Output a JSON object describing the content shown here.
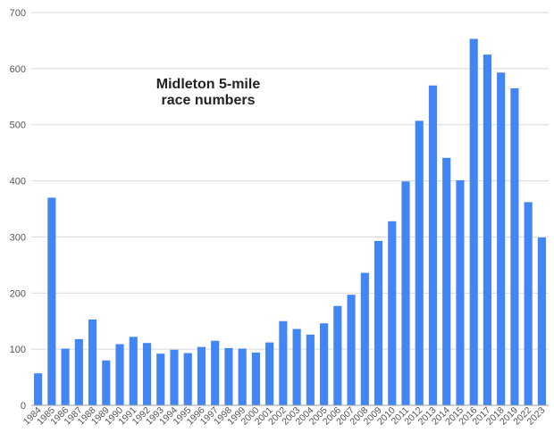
{
  "chart_data": {
    "type": "bar",
    "title_lines": [
      "Midleton 5-mile",
      "race numbers"
    ],
    "xlabel": "",
    "ylabel": "",
    "ylim": [
      0,
      700
    ],
    "yticks": [
      0,
      100,
      200,
      300,
      400,
      500,
      600,
      700
    ],
    "grid": true,
    "legend": "none",
    "bar_color": "#4285f4",
    "categories": [
      "1984",
      "1985",
      "1986",
      "1987",
      "1988",
      "1989",
      "1990",
      "1991",
      "1992",
      "1993",
      "1994",
      "1995",
      "1996",
      "1997",
      "1998",
      "1999",
      "2000",
      "2001",
      "2002",
      "2003",
      "2004",
      "2005",
      "2006",
      "2007",
      "2008",
      "2009",
      "2010",
      "2011",
      "2012",
      "2013",
      "2014",
      "2015",
      "2016",
      "2017",
      "2018",
      "2019",
      "2022",
      "2023"
    ],
    "values": [
      57,
      370,
      101,
      118,
      153,
      80,
      109,
      122,
      111,
      92,
      99,
      93,
      104,
      115,
      102,
      101,
      94,
      112,
      150,
      136,
      126,
      146,
      177,
      197,
      236,
      293,
      328,
      399,
      507,
      570,
      441,
      401,
      653,
      625,
      593,
      565,
      362,
      299
    ]
  }
}
